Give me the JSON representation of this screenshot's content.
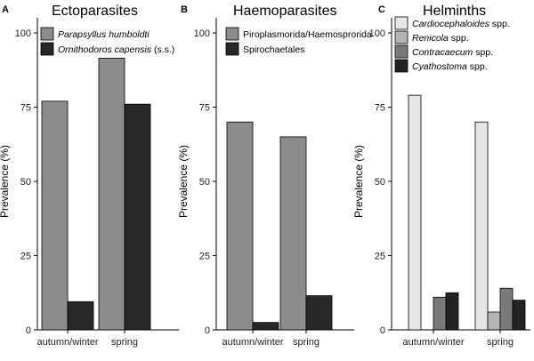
{
  "chart_data": [
    {
      "panel": "A",
      "title": "Ectoparasites",
      "type": "bar",
      "xlabel": "",
      "ylabel": "Prevalence (%)",
      "ylim": [
        0,
        100
      ],
      "yticks": [
        0,
        25,
        50,
        75,
        100
      ],
      "categories": [
        "autumn/winter",
        "spring"
      ],
      "legend_position": "top-left",
      "series": [
        {
          "name": "Parapsyllus humboldti",
          "italic": "Parapsyllus humboldti",
          "plain": "",
          "color": "#8c8c8c",
          "values": [
            77,
            91.5
          ]
        },
        {
          "name": "Ornithodoros capensis (s.s.)",
          "italic": "Ornithodoros capensis",
          "plain": " (s.s.)",
          "color": "#282828",
          "values": [
            9.5,
            76
          ]
        }
      ]
    },
    {
      "panel": "B",
      "title": "Haemoparasites",
      "type": "bar",
      "xlabel": "",
      "ylabel": "Prevalence (%)",
      "ylim": [
        0,
        100
      ],
      "yticks": [
        0,
        25,
        50,
        75,
        100
      ],
      "categories": [
        "autumn/winter",
        "spring"
      ],
      "legend_position": "top-left",
      "series": [
        {
          "name": "Piroplasmorida/Haemosprorida",
          "italic": "",
          "plain": "Piroplasmorida/Haemosprorida",
          "color": "#8c8c8c",
          "values": [
            70,
            65
          ]
        },
        {
          "name": "Spirochaetales",
          "italic": "",
          "plain": "Spirochaetales",
          "color": "#282828",
          "values": [
            2.5,
            11.5
          ]
        }
      ]
    },
    {
      "panel": "C",
      "title": "Helminths",
      "type": "bar",
      "xlabel": "",
      "ylabel": "Prevalence (%)",
      "ylim": [
        0,
        100
      ],
      "yticks": [
        0,
        25,
        50,
        75,
        100
      ],
      "categories": [
        "autumn/winter",
        "spring"
      ],
      "legend_position": "top-left",
      "series": [
        {
          "name": "Cardiocephaloides spp.",
          "italic": "Cardiocephaloides",
          "plain": " spp.",
          "color": "#e6e6e6",
          "values": [
            79,
            70
          ]
        },
        {
          "name": "Renicola spp.",
          "italic": "Renicola",
          "plain": " spp.",
          "color": "#b4b4b4",
          "values": [
            0,
            6
          ]
        },
        {
          "name": "Contracaecum spp.",
          "italic": "Contracaecum",
          "plain": " spp.",
          "color": "#7a7a7a",
          "values": [
            11,
            14
          ]
        },
        {
          "name": "Cyathostoma spp.",
          "italic": "Cyathostoma",
          "plain": " spp.",
          "color": "#232323",
          "values": [
            12.5,
            10
          ]
        }
      ]
    }
  ]
}
